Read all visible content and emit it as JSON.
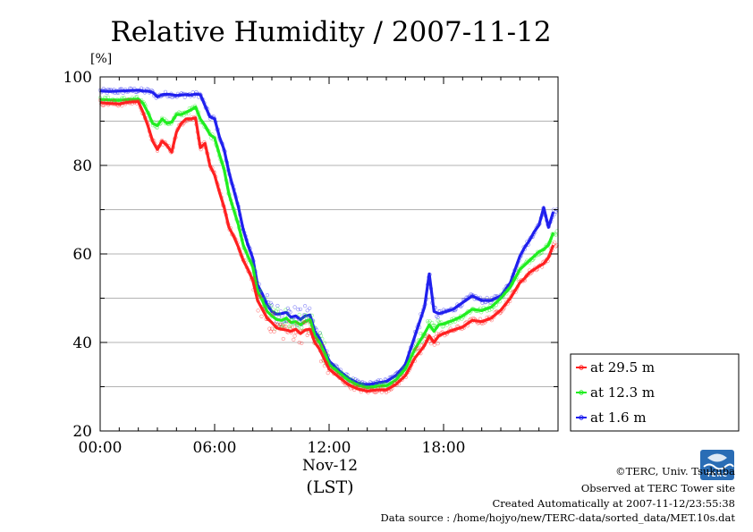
{
  "chart_data": {
    "type": "line",
    "title": "Relative Humidity / 2007-11-12",
    "ylabel": "[%]",
    "xlabel_date": "Nov-12",
    "xlabel_unit": "(LST)",
    "ylim": [
      20,
      100
    ],
    "yticks": [
      "100",
      "80",
      "60",
      "40",
      "20"
    ],
    "xlim_hours": [
      0,
      24
    ],
    "xticks": [
      "00:00",
      "06:00",
      "12:00",
      "18:00"
    ],
    "grid": true,
    "legend_position": "right",
    "x_hours": [
      0,
      0.5,
      1,
      1.5,
      2,
      2.25,
      2.5,
      2.75,
      3,
      3.25,
      3.5,
      3.75,
      4,
      4.25,
      4.5,
      4.75,
      5,
      5.25,
      5.5,
      5.75,
      6,
      6.25,
      6.5,
      6.75,
      7,
      7.25,
      7.5,
      7.75,
      8,
      8.25,
      8.5,
      8.75,
      9,
      9.25,
      9.5,
      9.75,
      10,
      10.25,
      10.5,
      10.75,
      11,
      11.25,
      11.5,
      11.75,
      12,
      12.5,
      13,
      13.5,
      14,
      14.5,
      15,
      15.5,
      16,
      16.5,
      17,
      17.25,
      17.5,
      17.75,
      18,
      18.5,
      19,
      19.5,
      20,
      20.5,
      21,
      21.5,
      22,
      22.25,
      22.5,
      22.75,
      23,
      23.25,
      23.5,
      23.75
    ],
    "series": [
      {
        "name": "at 29.5 m",
        "color": "#ff2020",
        "values": [
          94.2,
          94,
          93.9,
          94.3,
          94.4,
          92,
          89,
          85.5,
          83.6,
          85.5,
          84.5,
          83,
          87.5,
          89.5,
          90.5,
          90.5,
          90.7,
          84,
          85,
          80,
          77.8,
          74,
          70.5,
          66,
          64,
          61.5,
          58.5,
          56.5,
          54,
          49.5,
          47.5,
          45.5,
          44.5,
          43.3,
          43,
          42.8,
          42.5,
          43,
          42,
          42.8,
          43,
          40,
          38.5,
          36.2,
          34,
          32.2,
          30.5,
          29.5,
          29,
          29.3,
          29.3,
          30.5,
          32.5,
          36.5,
          39.3,
          41.5,
          40,
          41.5,
          42,
          42.8,
          43.5,
          45,
          44.7,
          45.5,
          47.3,
          50,
          53.5,
          54.5,
          55.8,
          56.5,
          57.2,
          57.8,
          59.2,
          62
        ]
      },
      {
        "name": "at 12.3 m",
        "color": "#20ee20",
        "values": [
          94.9,
          94.8,
          94.7,
          94.9,
          95,
          94,
          92,
          89.5,
          89,
          90.5,
          89.5,
          89.8,
          91.5,
          91.5,
          92,
          92.5,
          93.2,
          90.5,
          89,
          87,
          86.2,
          82.5,
          79,
          73.5,
          70,
          66.5,
          62,
          59.5,
          57,
          51.5,
          49.5,
          47,
          46,
          45.2,
          45,
          45.5,
          44.5,
          44.7,
          44,
          44.7,
          45.2,
          41.5,
          40,
          37.8,
          35,
          33.2,
          31.5,
          30.3,
          29.8,
          30.1,
          30.2,
          31.5,
          34,
          38.5,
          42,
          44,
          42.5,
          44,
          44.2,
          45,
          46,
          47.5,
          47.2,
          48,
          50,
          52.5,
          56.5,
          57.5,
          58.5,
          59.5,
          60.5,
          61,
          62,
          64.8
        ]
      },
      {
        "name": "at 1.6 m",
        "color": "#2020ee",
        "values": [
          96.8,
          96.7,
          96.8,
          96.9,
          97,
          96.8,
          96.8,
          96.5,
          95.5,
          96,
          96.1,
          96,
          95.8,
          95.9,
          96,
          95.9,
          96.1,
          96,
          93.5,
          91,
          90.5,
          86.5,
          83.5,
          78.5,
          74.5,
          70.5,
          65.5,
          62,
          59,
          53,
          51,
          48.5,
          47,
          46.4,
          46.5,
          46.8,
          45.7,
          46,
          45.2,
          46,
          46.2,
          42.5,
          41,
          38.5,
          35.8,
          33.7,
          32,
          30.8,
          30.4,
          30.8,
          31.2,
          32.5,
          35,
          41.5,
          48,
          55.5,
          47,
          46.5,
          46.8,
          47.5,
          49,
          50.5,
          49.5,
          49.5,
          50.5,
          53.5,
          59.5,
          61.5,
          63,
          65,
          66.5,
          70.5,
          66,
          69.5
        ]
      }
    ]
  },
  "footer": {
    "copyright": "©TERC, Univ. Tsukuba",
    "observed": "Observed at TERC Tower site",
    "created": "Created Automatically at 2007-11-12/23:55:38",
    "source": "Data source : /home/hojyo/new/TERC-data/sorted_data/MET.10s.dat"
  },
  "logo_text": "TERC",
  "logo_color": "#2a6db5"
}
